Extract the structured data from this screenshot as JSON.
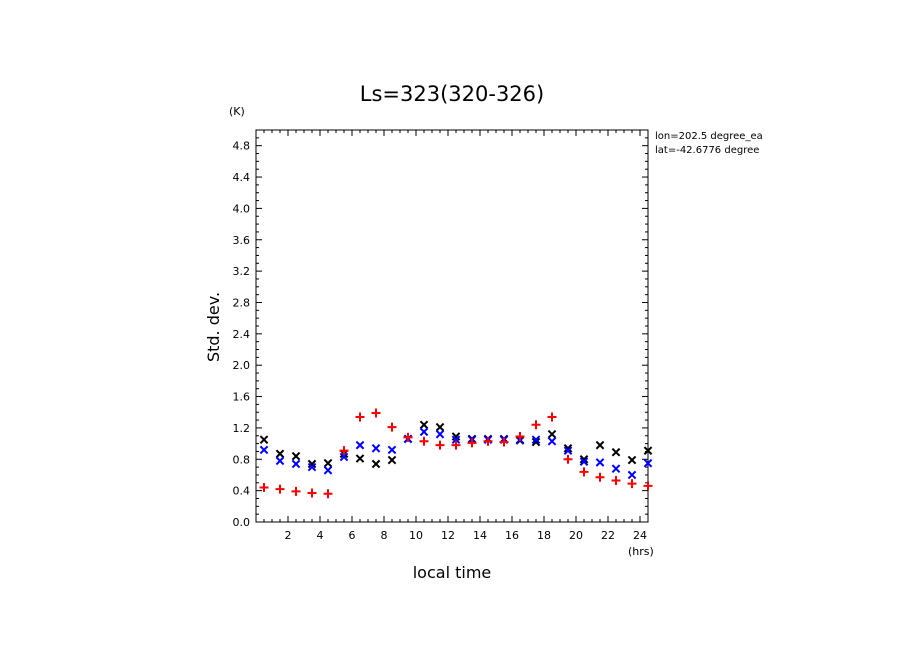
{
  "chart_data": {
    "type": "scatter",
    "title": "Ls=323(320-326)",
    "xlabel": "local time",
    "ylabel": "Std. dev.",
    "x_unit": "(hrs)",
    "y_unit": "(K)",
    "xlim": [
      0.0,
      24.5
    ],
    "ylim": [
      0.0,
      5.0
    ],
    "x_ticks": [
      "2",
      "4",
      "6",
      "8",
      "10",
      "12",
      "14",
      "16",
      "18",
      "20",
      "22",
      "24"
    ],
    "y_ticks": [
      "0.0",
      "0.4",
      "0.8",
      "1.2",
      "1.6",
      "2.0",
      "2.4",
      "2.8",
      "3.2",
      "3.6",
      "4.0",
      "4.4",
      "4.8"
    ],
    "annotations": [
      "lon=202.5 degree_ea",
      "lat=-42.6776 degree"
    ],
    "grid": false,
    "x": [
      0.5,
      1.5,
      2.5,
      3.5,
      4.5,
      5.5,
      6.5,
      7.5,
      8.5,
      9.5,
      10.5,
      11.5,
      12.5,
      13.5,
      14.5,
      15.5,
      16.5,
      17.5,
      18.5,
      19.5,
      20.5,
      21.5,
      22.5,
      23.5,
      24.5
    ],
    "series": [
      {
        "marker": "x",
        "color": "#000000",
        "values": [
          1.05,
          0.87,
          0.84,
          0.74,
          0.75,
          0.87,
          0.81,
          0.74,
          0.79,
          1.06,
          1.24,
          1.21,
          1.09,
          1.06,
          1.06,
          1.06,
          1.04,
          1.02,
          1.12,
          0.94,
          0.8,
          0.98,
          0.89,
          0.79,
          0.91
        ]
      },
      {
        "marker": "x",
        "color": "#0000ff",
        "values": [
          0.92,
          0.78,
          0.74,
          0.7,
          0.66,
          0.83,
          0.98,
          0.94,
          0.92,
          1.06,
          1.15,
          1.12,
          1.05,
          1.05,
          1.05,
          1.05,
          1.05,
          1.05,
          1.03,
          0.91,
          0.77,
          0.76,
          0.68,
          0.6,
          0.75
        ]
      },
      {
        "marker": "+",
        "color": "#ff0000",
        "values": [
          0.44,
          0.42,
          0.39,
          0.37,
          0.36,
          0.91,
          1.34,
          1.39,
          1.21,
          1.08,
          1.03,
          0.98,
          0.98,
          1.01,
          1.03,
          1.02,
          1.09,
          1.24,
          1.34,
          0.8,
          0.64,
          0.57,
          0.53,
          0.49,
          0.46
        ]
      }
    ]
  }
}
